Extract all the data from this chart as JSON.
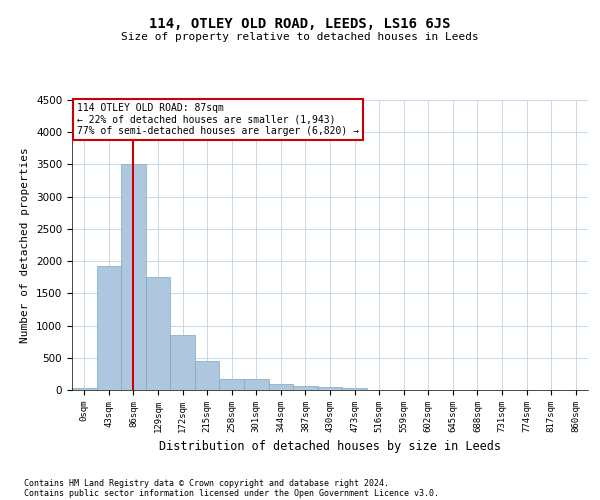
{
  "title": "114, OTLEY OLD ROAD, LEEDS, LS16 6JS",
  "subtitle": "Size of property relative to detached houses in Leeds",
  "xlabel": "Distribution of detached houses by size in Leeds",
  "ylabel": "Number of detached properties",
  "bar_color": "#aec6de",
  "bar_edge_color": "#7aaac8",
  "vline_color": "#cc0000",
  "vline_pos": 2,
  "annotation_title": "114 OTLEY OLD ROAD: 87sqm",
  "annotation_line2": "← 22% of detached houses are smaller (1,943)",
  "annotation_line3": "77% of semi-detached houses are larger (6,820) →",
  "annotation_box_color": "#cc0000",
  "categories": [
    "0sqm",
    "43sqm",
    "86sqm",
    "129sqm",
    "172sqm",
    "215sqm",
    "258sqm",
    "301sqm",
    "344sqm",
    "387sqm",
    "430sqm",
    "473sqm",
    "516sqm",
    "559sqm",
    "602sqm",
    "645sqm",
    "688sqm",
    "731sqm",
    "774sqm",
    "817sqm",
    "860sqm"
  ],
  "values": [
    30,
    1930,
    3500,
    1760,
    850,
    450,
    170,
    165,
    90,
    55,
    45,
    30,
    0,
    0,
    0,
    0,
    0,
    0,
    0,
    0,
    0
  ],
  "ylim": [
    0,
    4500
  ],
  "yticks": [
    0,
    500,
    1000,
    1500,
    2000,
    2500,
    3000,
    3500,
    4000,
    4500
  ],
  "background_color": "#ffffff",
  "grid_color": "#c8d8e8",
  "footer_line1": "Contains HM Land Registry data © Crown copyright and database right 2024.",
  "footer_line2": "Contains public sector information licensed under the Open Government Licence v3.0."
}
